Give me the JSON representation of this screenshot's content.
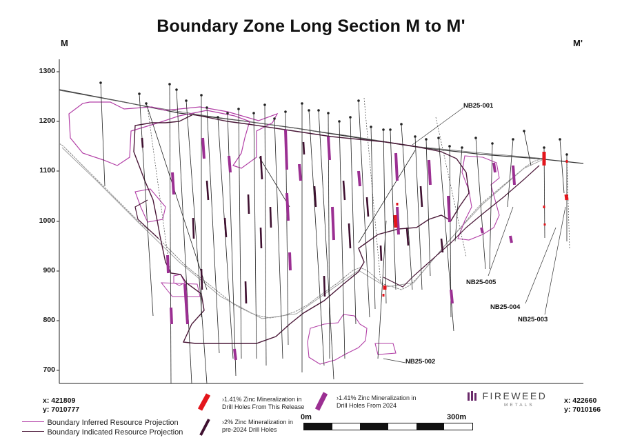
{
  "title": "Boundary Zone Long Section M to M'",
  "endpoints": {
    "left": "M",
    "right": "M'"
  },
  "elevation_axis": {
    "ticks": [
      "1300",
      "1200",
      "1100",
      "1000",
      "900",
      "800",
      "700"
    ]
  },
  "coordinates": {
    "left": {
      "x": "x: 421809",
      "y": "y: 7010777"
    },
    "right": {
      "x": "x: 422660",
      "y": "y: 7010166"
    }
  },
  "drill_hole_labels": [
    "NB25-001",
    "NB25-002",
    "NB25-003",
    "NB25-004",
    "NB25-005"
  ],
  "legend": {
    "boundary_lines": [
      {
        "label": "Boundary Inferred Resource Projection",
        "color": "#b23fa6"
      },
      {
        "label": "Boundary Indicated Resource Projection",
        "color": "#4a1838"
      }
    ],
    "mineralization": [
      {
        "label": "›1.41% Zinc Mineralization in Drill Holes From This Release",
        "color": "#e3161c"
      },
      {
        "label": "›1.41% Zinc Mineralization in Drill Holes From 2024",
        "color": "#9b2f92"
      },
      {
        "label": "›2% Zinc Mineralization in pre-2024 Drill Holes",
        "color": "#3f1030"
      }
    ]
  },
  "scale_bar": {
    "start": "0m",
    "end": "300m"
  },
  "logo": {
    "name": "FIREWEED",
    "sub": "METALS"
  },
  "colors": {
    "inferred": "#b23fa6",
    "indicated": "#4a1838",
    "release": "#e3161c",
    "y2024": "#9b2f92",
    "pre2024": "#3f1030",
    "pit": "#777777"
  }
}
